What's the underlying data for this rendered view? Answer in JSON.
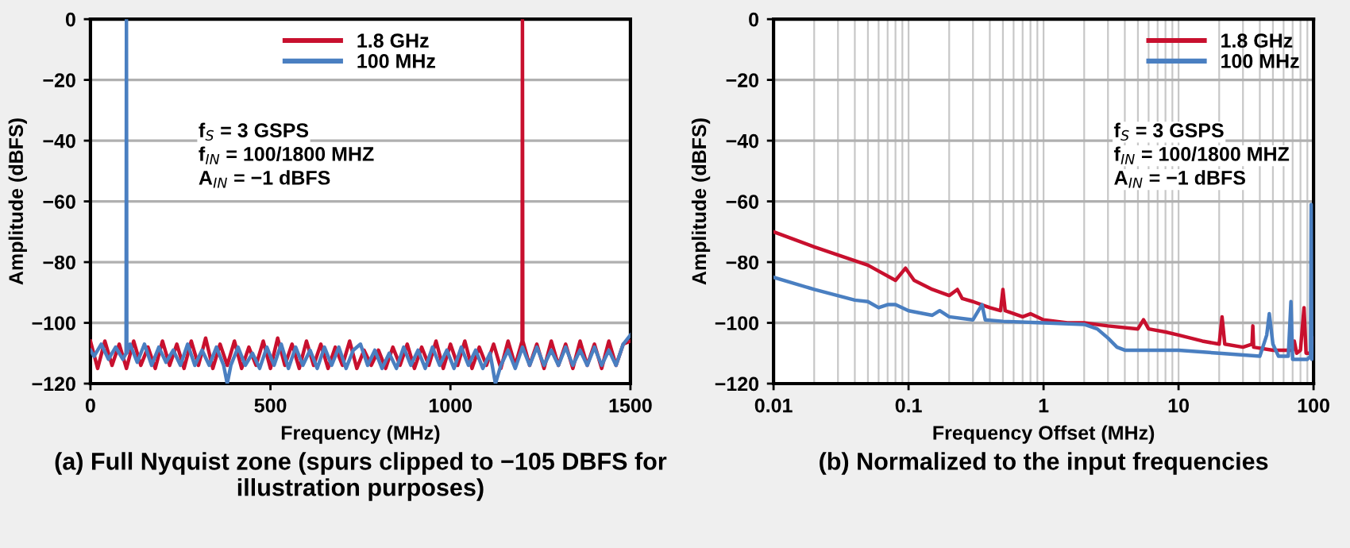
{
  "chart_data": [
    {
      "type": "line",
      "title": "(a) Full Nyquist zone (spurs clipped to −105 DBFS for illustration purposes)",
      "xlabel": "Frequency (MHz)",
      "ylabel": "Amplitude (dBFS)",
      "xlim": [
        0,
        1500
      ],
      "xticks": [
        0,
        500,
        1000,
        1500
      ],
      "ylim": [
        -120,
        0
      ],
      "yticks": [
        {
          "value": -120,
          "label": "−120"
        },
        {
          "value": -100,
          "label": "−100"
        },
        {
          "value": -80,
          "label": "−80"
        },
        {
          "value": -60,
          "label": "−60"
        },
        {
          "value": -40,
          "label": "−40"
        },
        {
          "value": -20,
          "label": "−20"
        },
        0
      ],
      "grid": "y",
      "legend": "top",
      "line_style": "solid",
      "annotations": [
        "f$_{S}$ = 3 GSPS",
        "f$_{IN}$ = 100/1800 MHZ",
        "A$_{IN}$ = −1 dBFS"
      ],
      "series": [
        {
          "name": "1.8 GHz",
          "color": "#c8102e",
          "x": [
            0,
            20,
            40,
            60,
            80,
            100,
            120,
            140,
            160,
            180,
            200,
            220,
            240,
            260,
            280,
            300,
            320,
            340,
            360,
            380,
            400,
            420,
            440,
            460,
            480,
            500,
            520,
            540,
            560,
            580,
            600,
            620,
            640,
            660,
            680,
            700,
            720,
            740,
            760,
            780,
            800,
            820,
            840,
            860,
            880,
            900,
            920,
            940,
            960,
            980,
            1000,
            1020,
            1040,
            1060,
            1080,
            1100,
            1120,
            1140,
            1160,
            1180,
            1199,
            1200,
            1201,
            1220,
            1240,
            1260,
            1280,
            1300,
            1320,
            1340,
            1360,
            1380,
            1400,
            1420,
            1440,
            1460,
            1480,
            1500
          ],
          "values": [
            -106,
            -115,
            -106,
            -114,
            -107,
            -115,
            -106,
            -114,
            -108,
            -115,
            -106,
            -114,
            -107,
            -115,
            -106,
            -114,
            -105,
            -115,
            -107,
            -114,
            -106,
            -115,
            -108,
            -114,
            -106,
            -115,
            -105,
            -114,
            -107,
            -115,
            -106,
            -114,
            -107,
            -115,
            -108,
            -114,
            -106,
            -115,
            -109,
            -114,
            -109,
            -115,
            -108,
            -114,
            -107,
            -115,
            -108,
            -114,
            -106,
            -115,
            -107,
            -114,
            -106,
            -115,
            -108,
            -114,
            -107,
            -115,
            -106,
            -114,
            -106,
            0,
            -106,
            -114,
            -107,
            -115,
            -106,
            -114,
            -107,
            -115,
            -106,
            -114,
            -107,
            -115,
            -106,
            -114,
            -107,
            -106
          ]
        },
        {
          "name": "100 MHz",
          "color": "#4a7fc1",
          "x": [
            0,
            10,
            30,
            50,
            70,
            90,
            99,
            100,
            101,
            110,
            130,
            150,
            170,
            190,
            210,
            230,
            250,
            270,
            290,
            310,
            330,
            350,
            370,
            380,
            390,
            410,
            430,
            450,
            470,
            490,
            510,
            530,
            550,
            570,
            590,
            610,
            630,
            650,
            670,
            690,
            710,
            730,
            750,
            770,
            790,
            810,
            830,
            850,
            870,
            890,
            910,
            930,
            950,
            970,
            990,
            1010,
            1030,
            1050,
            1070,
            1090,
            1110,
            1125,
            1140,
            1160,
            1180,
            1200,
            1220,
            1240,
            1260,
            1280,
            1300,
            1320,
            1340,
            1360,
            1380,
            1400,
            1420,
            1440,
            1460,
            1480,
            1500
          ],
          "values": [
            -109,
            -111,
            -107,
            -112,
            -108,
            -112,
            -110,
            0,
            -110,
            -107,
            -113,
            -107,
            -114,
            -108,
            -113,
            -109,
            -114,
            -107,
            -114,
            -109,
            -114,
            -108,
            -114,
            -120,
            -114,
            -108,
            -114,
            -110,
            -115,
            -108,
            -114,
            -107,
            -115,
            -108,
            -114,
            -109,
            -115,
            -108,
            -114,
            -108,
            -115,
            -109,
            -107,
            -114,
            -109,
            -115,
            -110,
            -115,
            -108,
            -114,
            -109,
            -115,
            -108,
            -114,
            -109,
            -115,
            -108,
            -114,
            -109,
            -115,
            -110,
            -120,
            -114,
            -109,
            -115,
            -108,
            -114,
            -108,
            -114,
            -109,
            -114,
            -108,
            -114,
            -109,
            -114,
            -108,
            -114,
            -109,
            -114,
            -107,
            -104
          ]
        }
      ]
    },
    {
      "type": "line",
      "title": "(b) Normalized to the input frequencies",
      "xlabel": "Frequency Offset (MHz)",
      "ylabel": "Amplitude (dBFS)",
      "log": "x",
      "xlim": [
        0.01,
        100
      ],
      "xticks": [
        0.01,
        0.1,
        1,
        10,
        100
      ],
      "ylim": [
        -120,
        0
      ],
      "yticks": [
        {
          "value": -120,
          "label": "−120"
        },
        {
          "value": -100,
          "label": "−100"
        },
        {
          "value": -80,
          "label": "−80"
        },
        {
          "value": -60,
          "label": "−60"
        },
        {
          "value": -40,
          "label": "−40"
        },
        {
          "value": -20,
          "label": "−20"
        },
        0
      ],
      "grid": true,
      "legend": "top right",
      "line_style": "solid",
      "annotations": [
        "f$_{S}$ = 3 GSPS",
        "f$_{IN}$ = 100/1800 MHZ",
        "A$_{IN}$ = −1 dBFS"
      ],
      "series": [
        {
          "name": "1.8 GHz",
          "color": "#c8102e",
          "x": [
            0.01,
            0.02,
            0.05,
            0.08,
            0.095,
            0.11,
            0.15,
            0.2,
            0.23,
            0.25,
            0.3,
            0.4,
            0.48,
            0.5,
            0.52,
            0.7,
            0.8,
            1,
            1.5,
            2,
            3,
            5,
            5.5,
            6,
            8,
            10,
            15,
            20,
            21,
            22,
            30,
            35,
            35.5,
            36,
            50,
            70,
            72,
            75,
            80,
            85,
            88,
            95,
            100
          ],
          "values": [
            -70,
            -75,
            -81,
            -86,
            -82,
            -86,
            -89,
            -91,
            -89,
            -92,
            -93,
            -95,
            -96,
            -89,
            -96,
            -98,
            -97,
            -99,
            -100,
            -100,
            -101,
            -102,
            -99,
            -102,
            -103,
            -104,
            -106,
            -107,
            -98,
            -107,
            -108,
            -107,
            -101,
            -108,
            -109,
            -109,
            -106,
            -110,
            -109,
            -95,
            -110,
            -110,
            -105
          ]
        },
        {
          "name": "100 MHz",
          "color": "#4a7fc1",
          "x": [
            0.01,
            0.02,
            0.04,
            0.05,
            0.06,
            0.07,
            0.08,
            0.1,
            0.15,
            0.17,
            0.2,
            0.3,
            0.35,
            0.37,
            0.5,
            1,
            2,
            2.5,
            3,
            3.5,
            4,
            10,
            20,
            40,
            45,
            47,
            50,
            55,
            65,
            68,
            70,
            80,
            90,
            95,
            96,
            97,
            100
          ],
          "values": [
            -85,
            -89,
            -92.5,
            -93,
            -95,
            -94,
            -94,
            -96,
            -97.5,
            -96,
            -98,
            -99,
            -94,
            -99,
            -99.5,
            -100,
            -100.5,
            -102,
            -105,
            -108,
            -109,
            -109,
            -110,
            -111,
            -104,
            -97,
            -107,
            -111,
            -111,
            -93,
            -112,
            -112,
            -112,
            -111,
            -61,
            -112,
            -105
          ]
        }
      ]
    }
  ]
}
